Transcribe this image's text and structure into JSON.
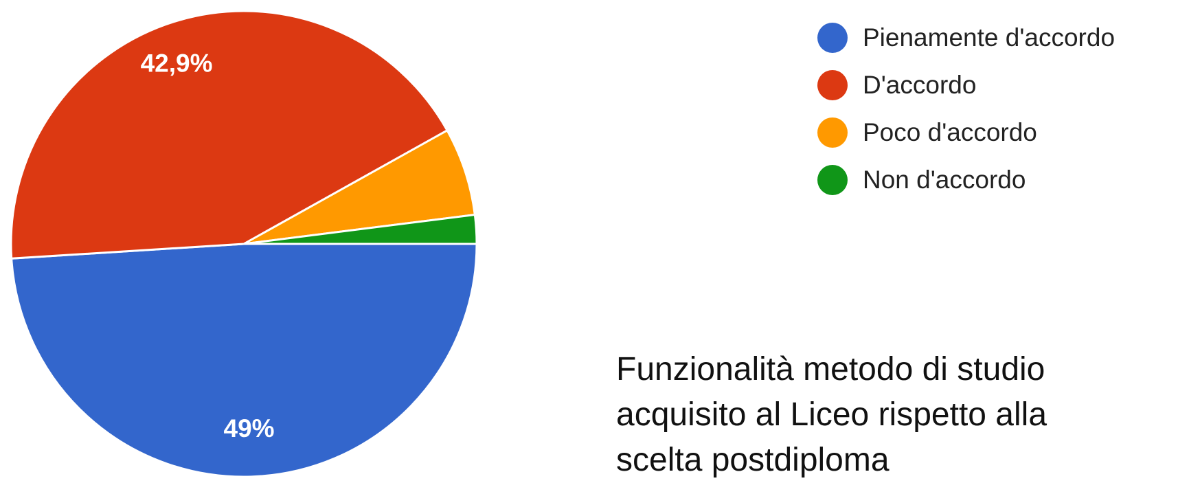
{
  "chart_data": {
    "type": "pie",
    "title": "Funzionalità metodo di studio acquisito al Liceo rispetto alla scelta postdiploma",
    "categories": [
      "Pienamente d'accordo",
      "D'accordo",
      "Poco d'accordo",
      "Non d'accordo"
    ],
    "values": [
      49,
      42.9,
      6.1,
      2.0
    ],
    "value_labels": [
      "49%",
      "42,9%",
      null,
      null
    ],
    "colors": [
      "#3366cc",
      "#dc3912",
      "#ff9900",
      "#109618"
    ],
    "legend": "right"
  }
}
